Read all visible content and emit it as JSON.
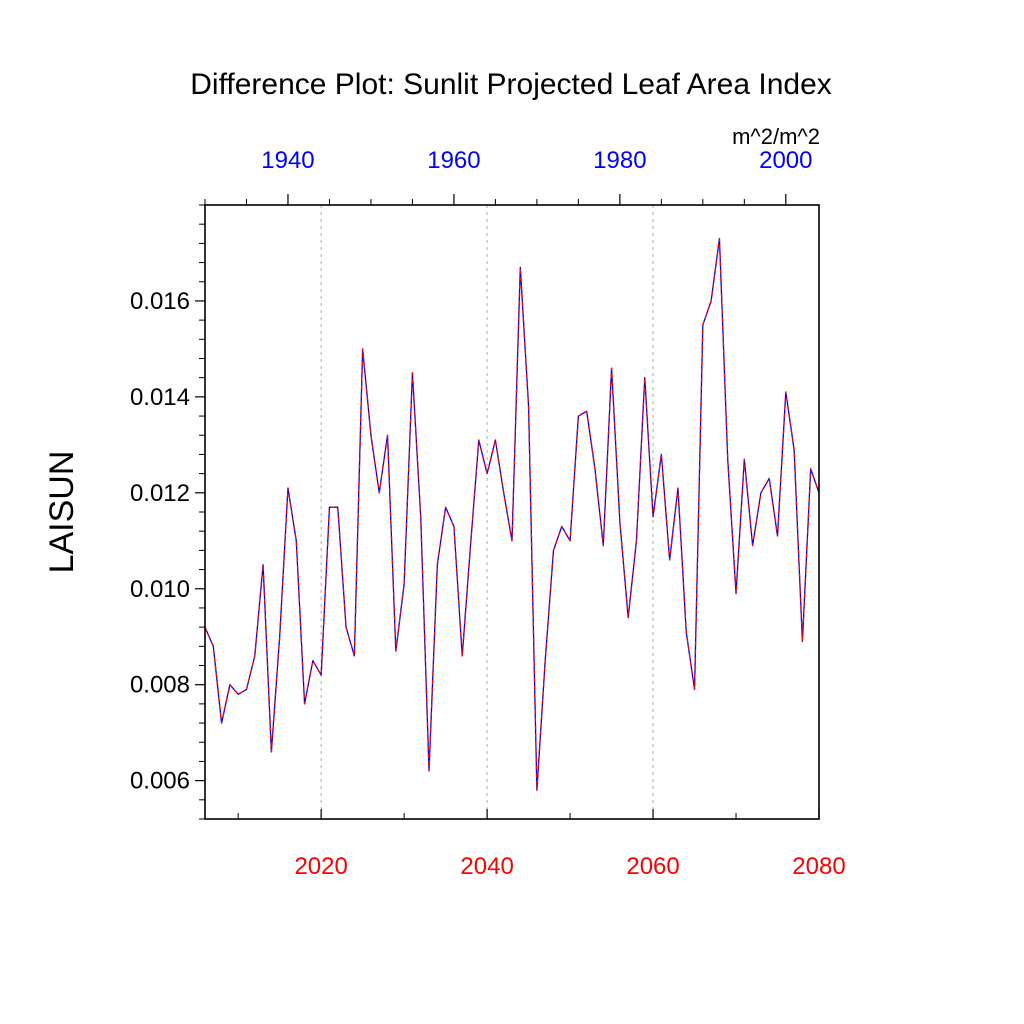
{
  "chart_data": {
    "type": "line",
    "title": "Difference Plot: Sunlit Projected Leaf Area Index",
    "units": "m^2/m^2",
    "ylabel": "LAISUN",
    "ylim": [
      0.0052,
      0.018
    ],
    "yticks": [
      0.006,
      0.008,
      0.01,
      0.012,
      0.014,
      0.016
    ],
    "ytick_labels": [
      "0.006",
      "0.008",
      "0.010",
      "0.012",
      "0.014",
      "0.016"
    ],
    "x_bottom": {
      "range": [
        2006,
        2080
      ],
      "ticks": [
        2020,
        2040,
        2060,
        2080
      ],
      "tick_labels": [
        "2020",
        "2040",
        "2060",
        "2080"
      ],
      "color": "#ff0000"
    },
    "x_top": {
      "range": [
        1930,
        2004
      ],
      "ticks": [
        1940,
        1960,
        1980,
        2000
      ],
      "tick_labels": [
        "1940",
        "1960",
        "1980",
        "2000"
      ],
      "color": "#0000ff"
    },
    "grid": "dotted vertical at major bottom ticks",
    "x": [
      2006,
      2007,
      2008,
      2009,
      2010,
      2011,
      2012,
      2013,
      2014,
      2015,
      2016,
      2017,
      2018,
      2019,
      2020,
      2021,
      2022,
      2023,
      2024,
      2025,
      2026,
      2027,
      2028,
      2029,
      2030,
      2031,
      2032,
      2033,
      2034,
      2035,
      2036,
      2037,
      2038,
      2039,
      2040,
      2041,
      2042,
      2043,
      2044,
      2045,
      2046,
      2047,
      2048,
      2049,
      2050,
      2051,
      2052,
      2053,
      2054,
      2055,
      2056,
      2057,
      2058,
      2059,
      2060,
      2061,
      2062,
      2063,
      2064,
      2065,
      2066,
      2067,
      2068,
      2069,
      2070,
      2071,
      2072,
      2073,
      2074,
      2075,
      2076,
      2077,
      2078,
      2079,
      2080
    ],
    "series": [
      {
        "name": "difference",
        "color": "#0000ff",
        "overlay_color": "#ff0000",
        "values": [
          0.0092,
          0.0088,
          0.0072,
          0.008,
          0.0078,
          0.0079,
          0.0086,
          0.0105,
          0.0066,
          0.009,
          0.0121,
          0.011,
          0.0076,
          0.0085,
          0.0082,
          0.0117,
          0.0117,
          0.0092,
          0.0086,
          0.015,
          0.0132,
          0.012,
          0.0132,
          0.0087,
          0.0101,
          0.0145,
          0.0115,
          0.0062,
          0.0105,
          0.0117,
          0.0113,
          0.0086,
          0.0109,
          0.0131,
          0.0124,
          0.0131,
          0.012,
          0.011,
          0.0167,
          0.0138,
          0.0058,
          0.0085,
          0.0108,
          0.0113,
          0.011,
          0.0136,
          0.0137,
          0.0125,
          0.0109,
          0.0146,
          0.0114,
          0.0094,
          0.011,
          0.0144,
          0.0115,
          0.0128,
          0.0106,
          0.0121,
          0.0091,
          0.0079,
          0.0155,
          0.016,
          0.0173,
          0.0127,
          0.0099,
          0.0127,
          0.0109,
          0.012,
          0.0123,
          0.0111,
          0.0141,
          0.0129,
          0.0089,
          0.0125,
          0.012
        ]
      }
    ]
  }
}
